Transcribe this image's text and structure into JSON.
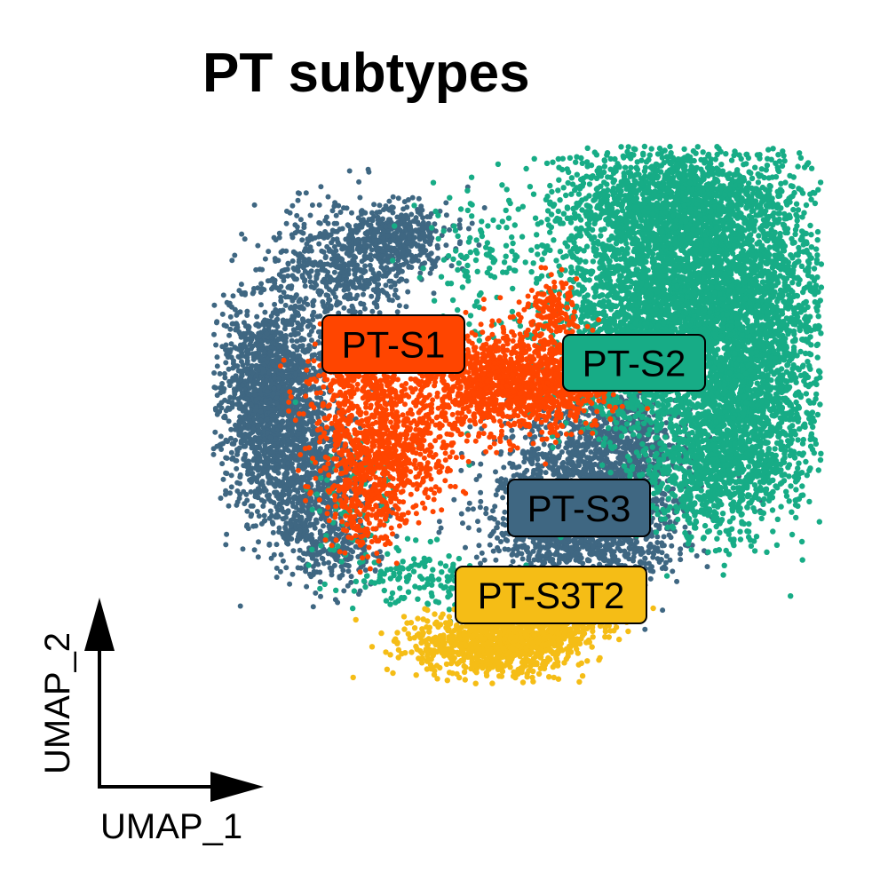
{
  "chart_data": {
    "type": "scatter",
    "title": "PT subtypes",
    "xlabel": "UMAP_1",
    "ylabel": "UMAP_2",
    "grid": false,
    "legend": "none",
    "series": [
      {
        "name": "PT-S1",
        "color": "#FF4500"
      },
      {
        "name": "PT-S2",
        "color": "#17AC86"
      },
      {
        "name": "PT-S3",
        "color": "#3F6782"
      },
      {
        "name": "PT-S3T2",
        "color": "#F5BD16"
      }
    ]
  }
}
